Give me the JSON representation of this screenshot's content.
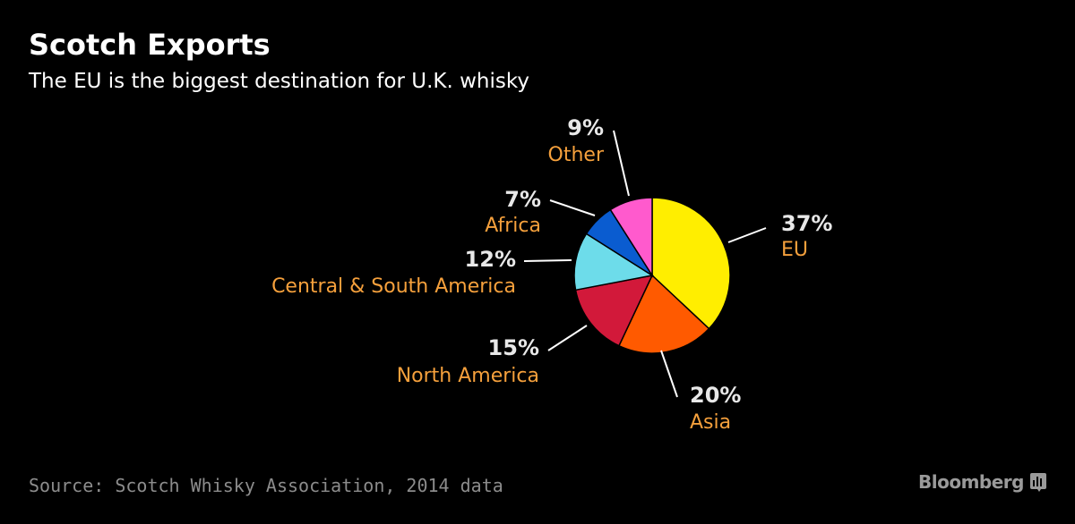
{
  "chart_data": {
    "type": "pie",
    "title": "Scotch Exports",
    "subtitle": "The EU is the biggest destination for U.K. whisky",
    "source": "Source: Scotch Whisky Association, 2014 data",
    "brand": "Bloomberg",
    "unit": "%",
    "slices": [
      {
        "label": "EU",
        "value": 37,
        "display": "37%",
        "color": "#ffee00"
      },
      {
        "label": "Asia",
        "value": 20,
        "display": "20%",
        "color": "#ff5a00"
      },
      {
        "label": "North America",
        "value": 15,
        "display": "15%",
        "color": "#d2193a"
      },
      {
        "label": "Central & South America",
        "value": 12,
        "display": "12%",
        "color": "#6ddcea"
      },
      {
        "label": "Africa",
        "value": 7,
        "display": "7%",
        "color": "#0a5cd0"
      },
      {
        "label": "Other",
        "value": 9,
        "display": "9%",
        "color": "#ff5acd"
      }
    ],
    "label_color": "#f5a03c",
    "value_color": "#e8e8e8",
    "legend": "none"
  }
}
